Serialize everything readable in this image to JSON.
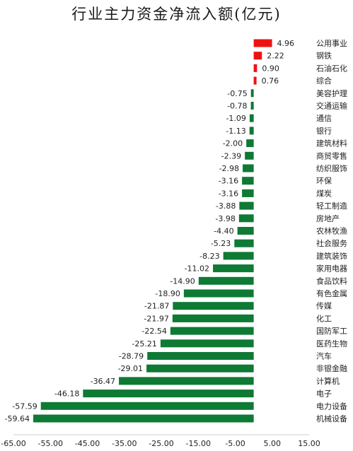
{
  "chart_data": {
    "type": "bar",
    "orientation": "horizontal",
    "title": "行业主力资金净流入额(亿元)",
    "xlabel": "",
    "ylabel": "",
    "xlim": [
      -65,
      15
    ],
    "x_ticks": [
      "-65.00",
      "-55.00",
      "-45.00",
      "-35.00",
      "-25.00",
      "-15.00",
      "-5.00",
      "5.00",
      "15.00"
    ],
    "grid": false,
    "colors": {
      "positive": "#ee1111",
      "negative": "#0e7a34"
    },
    "categories": [
      "公用事业",
      "钢铁",
      "石油石化",
      "综合",
      "美容护理",
      "交通运输",
      "通信",
      "银行",
      "建筑材料",
      "商贸零售",
      "纺织服饰",
      "环保",
      "煤炭",
      "轻工制造",
      "房地产",
      "农林牧渔",
      "社会服务",
      "建筑装饰",
      "家用电器",
      "食品饮料",
      "有色金属",
      "传媒",
      "化工",
      "国防军工",
      "医药生物",
      "汽车",
      "非银金融",
      "计算机",
      "电子",
      "电力设备",
      "机械设备"
    ],
    "values": [
      4.96,
      2.22,
      0.9,
      0.76,
      -0.75,
      -0.78,
      -1.09,
      -1.13,
      -2.0,
      -2.39,
      -2.98,
      -3.16,
      -3.16,
      -3.88,
      -3.98,
      -4.4,
      -5.23,
      -8.23,
      -11.02,
      -14.9,
      -18.9,
      -21.87,
      -21.97,
      -22.54,
      -25.21,
      -28.79,
      -29.01,
      -36.47,
      -46.18,
      -57.59,
      -59.64
    ],
    "value_labels": [
      "4.96",
      "2.22",
      "0.90",
      "0.76",
      "-0.75",
      "-0.78",
      "-1.09",
      "-1.13",
      "-2.00",
      "-2.39",
      "-2.98",
      "-3.16",
      "-3.16",
      "-3.88",
      "-3.98",
      "-4.40",
      "-5.23",
      "-8.23",
      "-11.02",
      "-14.90",
      "-18.90",
      "-21.87",
      "-21.97",
      "-22.54",
      "-25.21",
      "-28.79",
      "-29.01",
      "-36.47",
      "-46.18",
      "-57.59",
      "-59.64"
    ]
  }
}
